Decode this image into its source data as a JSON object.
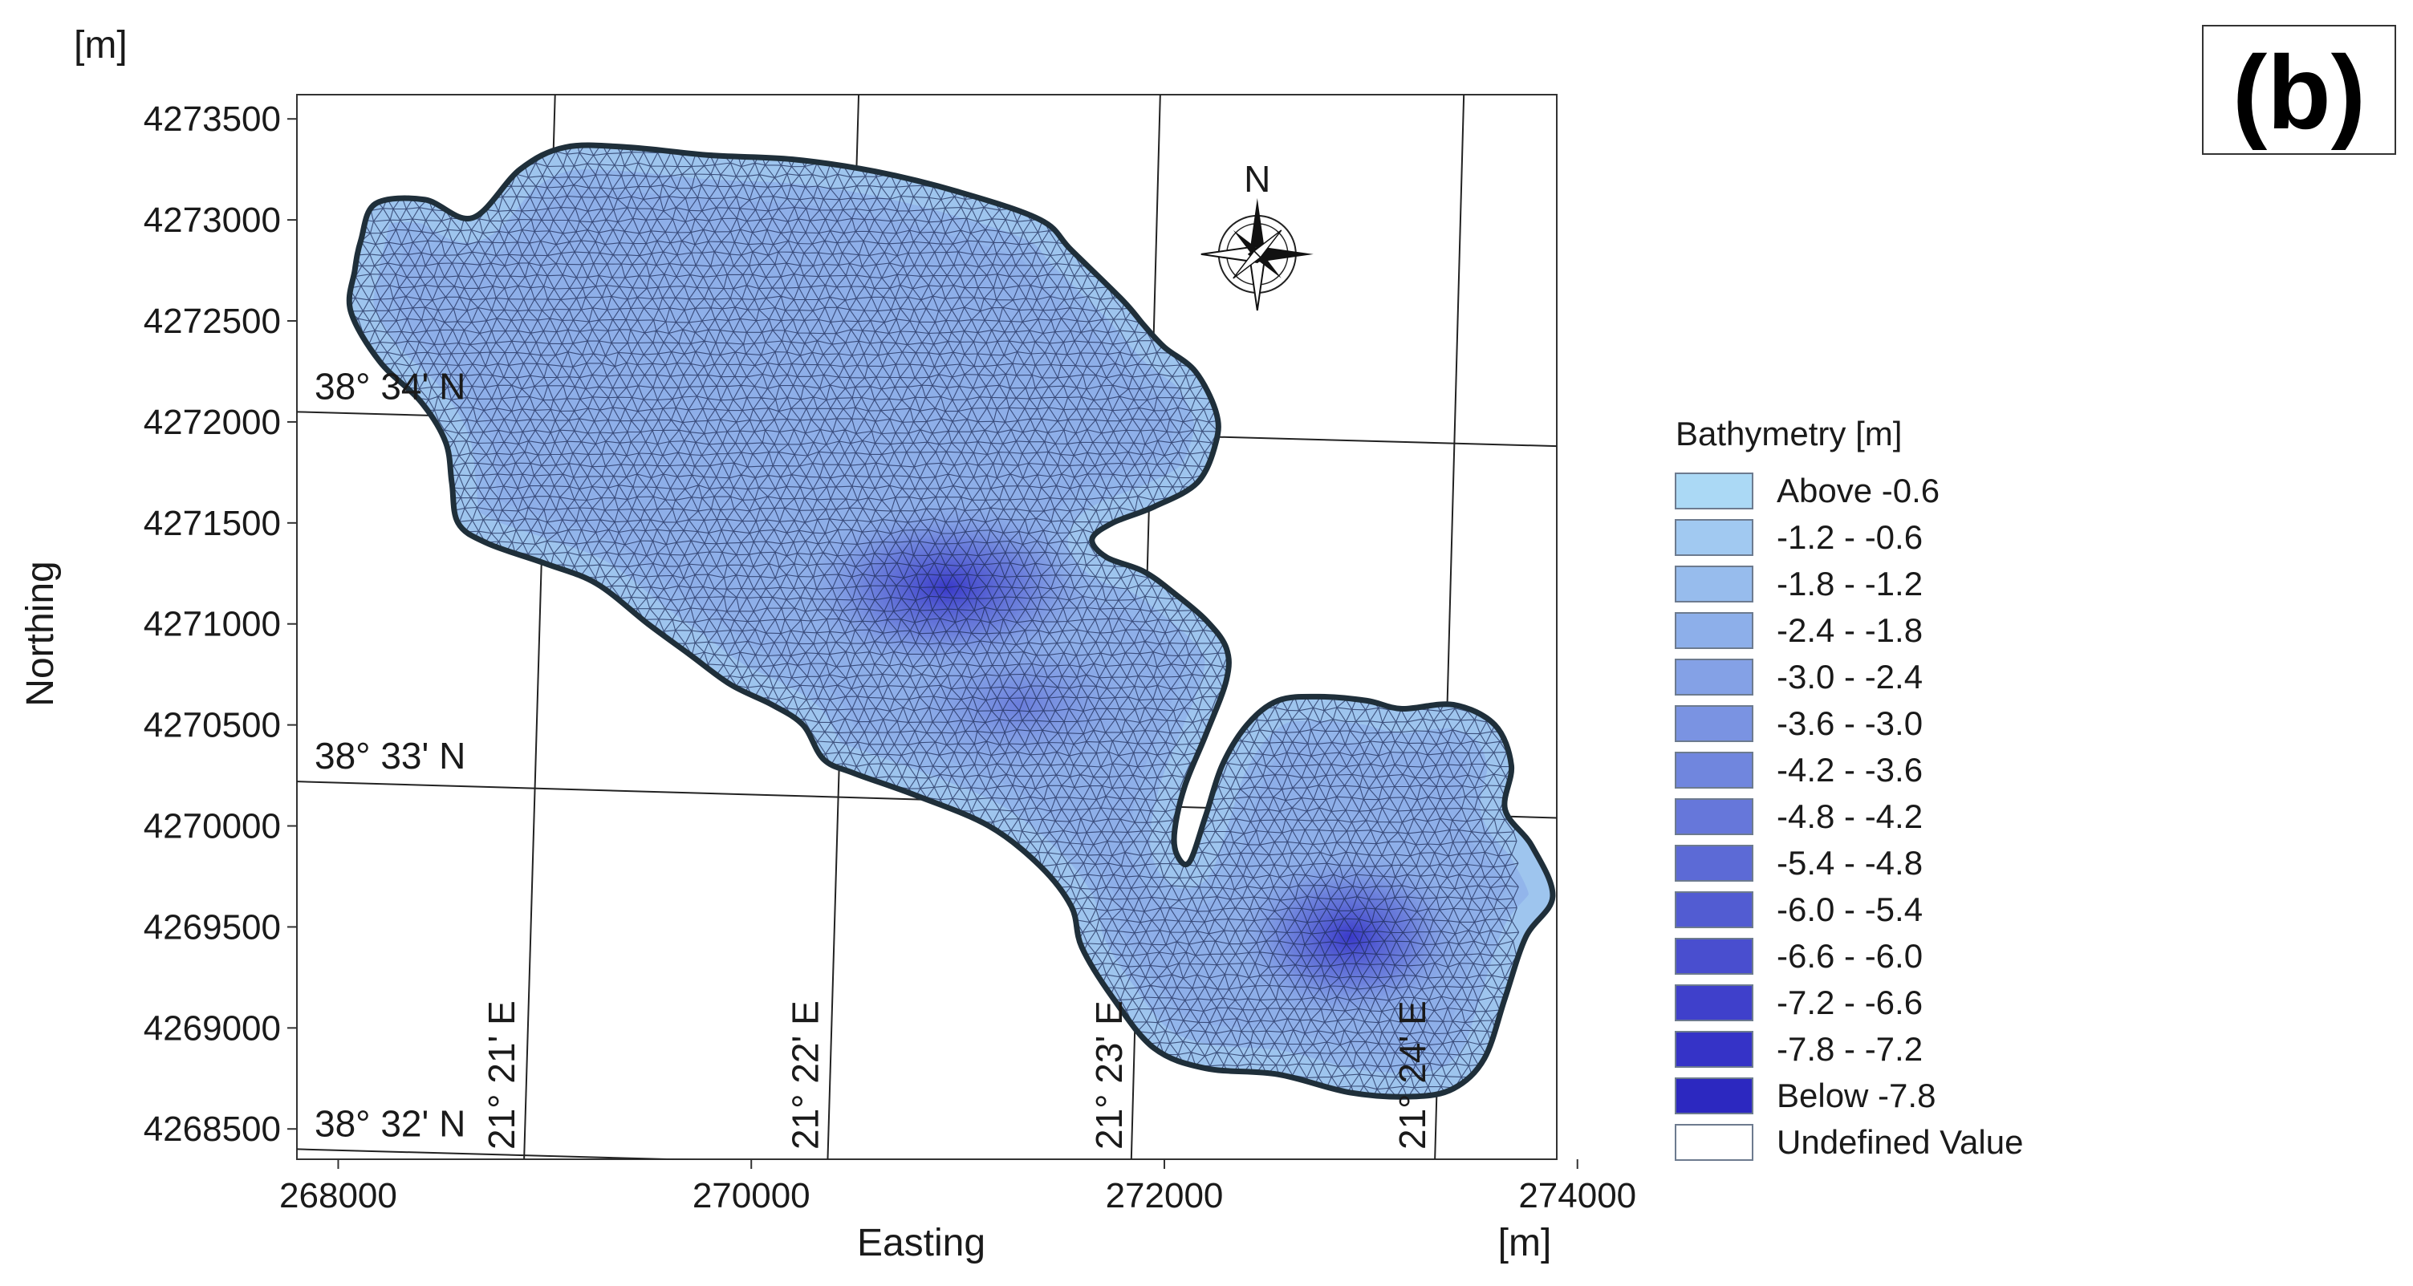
{
  "panel_label": "(b)",
  "chart_data": {
    "type": "map",
    "subject": "bathymetry mesh",
    "x_axis": {
      "label": "Easting",
      "unit": "[m]",
      "range": [
        267800,
        273900
      ],
      "ticks": [
        268000,
        270000,
        272000,
        274000
      ],
      "tick_labels": [
        "268000",
        "270000",
        "272000",
        "274000"
      ]
    },
    "y_axis": {
      "label": "Northing",
      "unit": "[m]",
      "range": [
        4268350,
        4273620
      ],
      "ticks": [
        4268500,
        4269000,
        4269500,
        4270000,
        4270500,
        4271000,
        4271500,
        4272000,
        4272500,
        4273000,
        4273500
      ],
      "tick_labels": [
        "4268500",
        "4269000",
        "4269500",
        "4270000",
        "4270500",
        "4271000",
        "4271500",
        "4272000",
        "4272500",
        "4273000",
        "4273500"
      ]
    },
    "graticule": {
      "latitudes": [
        {
          "label": "38° 34' N",
          "left": [
            267800,
            4272050
          ],
          "right": [
            273900,
            4271880
          ]
        },
        {
          "label": "38° 33' N",
          "left": [
            267800,
            4270220
          ],
          "right": [
            273900,
            4270040
          ]
        },
        {
          "label": "38° 32' N",
          "left": [
            267800,
            4268400
          ],
          "right": [
            273900,
            4268230
          ]
        }
      ],
      "longitudes": [
        {
          "label": "21° 21' E",
          "top": [
            269050,
            4273620
          ],
          "bottom": [
            268900,
            4268350
          ]
        },
        {
          "label": "21° 22' E",
          "top": [
            270520,
            4273620
          ],
          "bottom": [
            270370,
            4268350
          ]
        },
        {
          "label": "21° 23' E",
          "top": [
            271980,
            4273620
          ],
          "bottom": [
            271840,
            4268350
          ]
        },
        {
          "label": "21° 24' E",
          "top": [
            273450,
            4273620
          ],
          "bottom": [
            273310,
            4268350
          ]
        }
      ]
    },
    "north_arrow": {
      "label": "N",
      "position": [
        272450,
        4272830
      ]
    },
    "legend": {
      "title": "Bathymetry [m]",
      "placement": "right",
      "items": [
        {
          "label": "Above -0.6",
          "color": "#abd9f5"
        },
        {
          "label": "-1.2 - -0.6",
          "color": "#a1c9f1"
        },
        {
          "label": "-1.8 - -1.2",
          "color": "#97bced"
        },
        {
          "label": "-2.4 - -1.8",
          "color": "#8dafea"
        },
        {
          "label": "-3.0 - -2.4",
          "color": "#84a1e6"
        },
        {
          "label": "-3.6 - -3.0",
          "color": "#7a93e2"
        },
        {
          "label": "-4.2 - -3.6",
          "color": "#7086de"
        },
        {
          "label": "-4.8 - -4.2",
          "color": "#6677da"
        },
        {
          "label": "-5.4 - -4.8",
          "color": "#5c6ad6"
        },
        {
          "label": "-6.0 - -5.4",
          "color": "#525cd2"
        },
        {
          "label": "-6.6 - -6.0",
          "color": "#494ecf"
        },
        {
          "label": "-7.2 - -6.6",
          "color": "#3f40cb"
        },
        {
          "label": "-7.8 - -7.2",
          "color": "#3533c7"
        },
        {
          "label": "Below -7.8",
          "color": "#2c28c0"
        },
        {
          "label": "Undefined Value",
          "color": "#ffffff"
        }
      ]
    },
    "outline": [
      [
        268110,
        4272900
      ],
      [
        268180,
        4273080
      ],
      [
        268420,
        4273100
      ],
      [
        268650,
        4273010
      ],
      [
        268880,
        4273250
      ],
      [
        269100,
        4273360
      ],
      [
        269400,
        4273360
      ],
      [
        269800,
        4273320
      ],
      [
        270200,
        4273300
      ],
      [
        270600,
        4273240
      ],
      [
        271000,
        4273140
      ],
      [
        271400,
        4273000
      ],
      [
        271550,
        4272850
      ],
      [
        271800,
        4272600
      ],
      [
        271900,
        4272480
      ],
      [
        272000,
        4272370
      ],
      [
        272150,
        4272250
      ],
      [
        272250,
        4272050
      ],
      [
        272250,
        4271900
      ],
      [
        272160,
        4271700
      ],
      [
        271950,
        4271580
      ],
      [
        271750,
        4271500
      ],
      [
        271650,
        4271420
      ],
      [
        271720,
        4271330
      ],
      [
        271900,
        4271260
      ],
      [
        272050,
        4271150
      ],
      [
        272200,
        4271020
      ],
      [
        272300,
        4270880
      ],
      [
        272300,
        4270720
      ],
      [
        272200,
        4270450
      ],
      [
        272100,
        4270200
      ],
      [
        272050,
        4269980
      ],
      [
        272060,
        4269860
      ],
      [
        272120,
        4269820
      ],
      [
        272200,
        4270050
      ],
      [
        272280,
        4270300
      ],
      [
        272400,
        4270500
      ],
      [
        272550,
        4270620
      ],
      [
        272750,
        4270640
      ],
      [
        272980,
        4270620
      ],
      [
        273150,
        4270580
      ],
      [
        273400,
        4270600
      ],
      [
        273600,
        4270500
      ],
      [
        273680,
        4270300
      ],
      [
        273650,
        4270080
      ],
      [
        273780,
        4269900
      ],
      [
        273880,
        4269650
      ],
      [
        273750,
        4269450
      ],
      [
        273650,
        4269150
      ],
      [
        273550,
        4268850
      ],
      [
        273400,
        4268700
      ],
      [
        273200,
        4268660
      ],
      [
        272900,
        4268680
      ],
      [
        272550,
        4268770
      ],
      [
        272200,
        4268800
      ],
      [
        271950,
        4268900
      ],
      [
        271750,
        4269150
      ],
      [
        271600,
        4269400
      ],
      [
        271550,
        4269600
      ],
      [
        271400,
        4269800
      ],
      [
        271150,
        4270000
      ],
      [
        270800,
        4270150
      ],
      [
        270500,
        4270260
      ],
      [
        270350,
        4270330
      ],
      [
        270250,
        4270500
      ],
      [
        270100,
        4270600
      ],
      [
        269900,
        4270700
      ],
      [
        269700,
        4270850
      ],
      [
        269500,
        4271000
      ],
      [
        269250,
        4271200
      ],
      [
        269000,
        4271300
      ],
      [
        268720,
        4271400
      ],
      [
        268580,
        4271500
      ],
      [
        268550,
        4271700
      ],
      [
        268520,
        4271900
      ],
      [
        268400,
        4272100
      ],
      [
        268200,
        4272300
      ],
      [
        268060,
        4272550
      ],
      [
        268080,
        4272750
      ]
    ],
    "deep_zones": [
      {
        "center": [
          270950,
          4271180
        ],
        "radius": [
          700,
          420
        ]
      },
      {
        "center": [
          271300,
          4270600
        ],
        "radius": [
          550,
          330
        ]
      },
      {
        "center": [
          272900,
          4269450
        ],
        "radius": [
          550,
          420
        ]
      }
    ]
  }
}
